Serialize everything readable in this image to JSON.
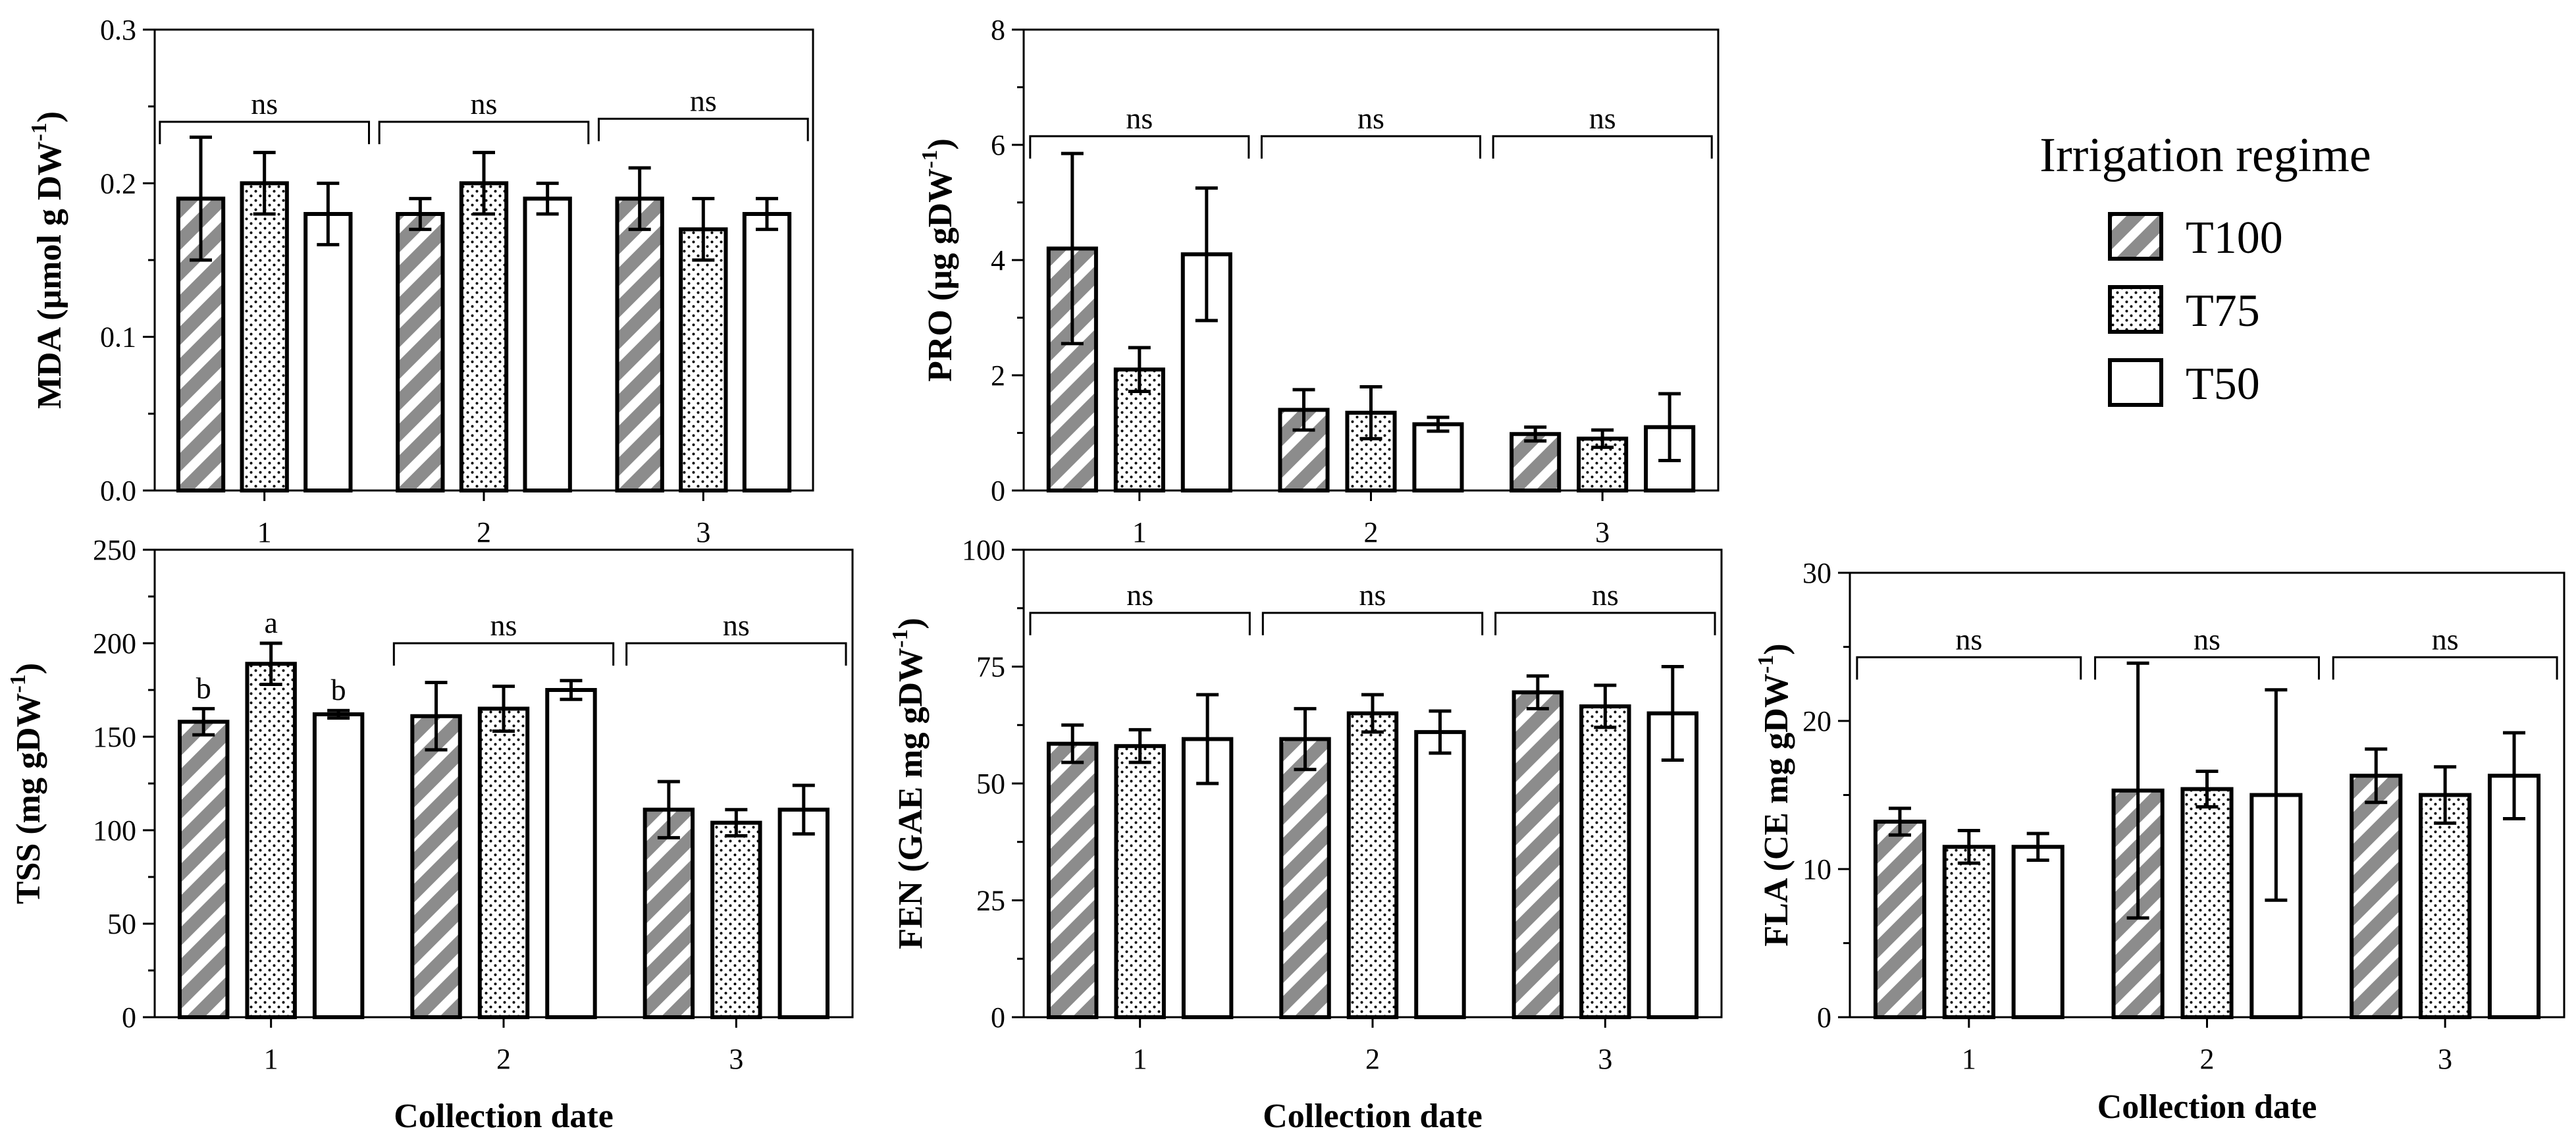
{
  "legend": {
    "title": "Irrigation regime",
    "placement": "top-right",
    "entries": [
      {
        "name": "T100",
        "pattern": "hatched"
      },
      {
        "name": "T75",
        "pattern": "dotted"
      },
      {
        "name": "T50",
        "pattern": "open"
      }
    ]
  },
  "colors": {
    "hatch": "#8c8c8c",
    "dots": "#000000",
    "outline": "#000000"
  },
  "chart_data": [
    {
      "id": "mda",
      "type": "bar",
      "ylabel_main": "MDA (μmol g DW",
      "ylabel_sup": "-1",
      "ylabel_end": ")",
      "xlabel": "",
      "categories": [
        "1",
        "2",
        "3"
      ],
      "ylim": [
        0,
        0.3
      ],
      "yticks": [
        "0.0",
        "0.1",
        "0.2",
        "0.3"
      ],
      "ytick_values": [
        0,
        0.1,
        0.2,
        0.3
      ],
      "series": [
        {
          "name": "T100",
          "values": [
            0.19,
            0.18,
            0.19
          ],
          "err": [
            0.04,
            0.01,
            0.02
          ],
          "letters": [
            "",
            "",
            ""
          ]
        },
        {
          "name": "T75",
          "values": [
            0.2,
            0.2,
            0.17
          ],
          "err": [
            0.02,
            0.02,
            0.02
          ],
          "letters": [
            "",
            "",
            ""
          ]
        },
        {
          "name": "T50",
          "values": [
            0.18,
            0.19,
            0.18
          ],
          "err": [
            0.02,
            0.01,
            0.01
          ],
          "letters": [
            "",
            "",
            ""
          ]
        }
      ],
      "group_labels": [
        "ns",
        "ns",
        "ns"
      ],
      "bracket_y": [
        0.24,
        0.24,
        0.242
      ]
    },
    {
      "id": "pro",
      "type": "bar",
      "ylabel_main": "PRO (μg gDW",
      "ylabel_sup": "-1",
      "ylabel_end": ")",
      "xlabel": "",
      "categories": [
        "1",
        "2",
        "3"
      ],
      "ylim": [
        0,
        8
      ],
      "yticks": [
        "0",
        "2",
        "4",
        "6",
        "8"
      ],
      "ytick_values": [
        0,
        2,
        4,
        6,
        8
      ],
      "series": [
        {
          "name": "T100",
          "values": [
            4.2,
            1.4,
            0.98
          ],
          "err": [
            1.65,
            0.35,
            0.12
          ],
          "letters": [
            "",
            "",
            ""
          ]
        },
        {
          "name": "T75",
          "values": [
            2.1,
            1.35,
            0.9
          ],
          "err": [
            0.38,
            0.45,
            0.15
          ],
          "letters": [
            "",
            "",
            ""
          ]
        },
        {
          "name": "T50",
          "values": [
            4.1,
            1.15,
            1.1
          ],
          "err": [
            1.15,
            0.12,
            0.58
          ],
          "letters": [
            "",
            "",
            ""
          ]
        }
      ],
      "group_labels": [
        "ns",
        "ns",
        "ns"
      ],
      "bracket_y": [
        6.15,
        6.15,
        6.15
      ]
    },
    {
      "id": "tss",
      "type": "bar",
      "ylabel_main": "TSS (mg gDW",
      "ylabel_sup": "-1",
      "ylabel_end": ")",
      "xlabel": "Collection date",
      "categories": [
        "1",
        "2",
        "3"
      ],
      "ylim": [
        0,
        250
      ],
      "yticks": [
        "0",
        "50",
        "100",
        "150",
        "200",
        "250"
      ],
      "ytick_values": [
        0,
        50,
        100,
        150,
        200,
        250
      ],
      "series": [
        {
          "name": "T100",
          "values": [
            158,
            161,
            111
          ],
          "err": [
            7,
            18,
            15
          ],
          "letters": [
            "b",
            "",
            ""
          ]
        },
        {
          "name": "T75",
          "values": [
            189,
            165,
            104
          ],
          "err": [
            11,
            12,
            7
          ],
          "letters": [
            "a",
            "",
            ""
          ]
        },
        {
          "name": "T50",
          "values": [
            162,
            175,
            111
          ],
          "err": [
            2,
            5,
            13
          ],
          "letters": [
            "b",
            "",
            ""
          ]
        }
      ],
      "group_labels": [
        "",
        "ns",
        "ns"
      ],
      "bracket_y": [
        0,
        200,
        200
      ]
    },
    {
      "id": "fen",
      "type": "bar",
      "ylabel_main": "FEN (GAE mg gDW",
      "ylabel_sup": "-1",
      "ylabel_end": ")",
      "xlabel": "Collection date",
      "categories": [
        "1",
        "2",
        "3"
      ],
      "ylim": [
        0,
        100
      ],
      "yticks": [
        "0",
        "25",
        "50",
        "75",
        "100"
      ],
      "ytick_values": [
        0,
        25,
        50,
        75,
        100
      ],
      "series": [
        {
          "name": "T100",
          "values": [
            58.5,
            59.5,
            69.5
          ],
          "err": [
            4,
            6.5,
            3.5
          ],
          "letters": [
            "",
            "",
            ""
          ]
        },
        {
          "name": "T75",
          "values": [
            58,
            65,
            66.5
          ],
          "err": [
            3.5,
            4,
            4.5
          ],
          "letters": [
            "",
            "",
            ""
          ]
        },
        {
          "name": "T50",
          "values": [
            59.5,
            61,
            65
          ],
          "err": [
            9.5,
            4.5,
            10
          ],
          "letters": [
            "",
            "",
            ""
          ]
        }
      ],
      "group_labels": [
        "ns",
        "ns",
        "ns"
      ],
      "bracket_y": [
        86.5,
        86.5,
        86.5
      ]
    },
    {
      "id": "fla",
      "type": "bar",
      "ylabel_main": "FLA (CE mg gDW",
      "ylabel_sup": "-1",
      "ylabel_end": ")",
      "xlabel": "Collection date",
      "categories": [
        "1",
        "2",
        "3"
      ],
      "ylim": [
        0,
        30
      ],
      "yticks": [
        "0",
        "10",
        "20",
        "30"
      ],
      "ytick_values": [
        0,
        10,
        20,
        30
      ],
      "series": [
        {
          "name": "T100",
          "values": [
            13.2,
            15.3,
            16.3
          ],
          "err": [
            0.9,
            8.6,
            1.8
          ],
          "letters": [
            "",
            "",
            ""
          ]
        },
        {
          "name": "T75",
          "values": [
            11.5,
            15.4,
            15
          ],
          "err": [
            1.1,
            1.2,
            1.9
          ],
          "letters": [
            "",
            "",
            ""
          ]
        },
        {
          "name": "T50",
          "values": [
            11.5,
            15,
            16.3
          ],
          "err": [
            0.9,
            7.1,
            2.9
          ],
          "letters": [
            "",
            "",
            ""
          ]
        }
      ],
      "group_labels": [
        "ns",
        "ns",
        "ns"
      ],
      "bracket_y": [
        24.3,
        24.3,
        24.3
      ]
    }
  ]
}
